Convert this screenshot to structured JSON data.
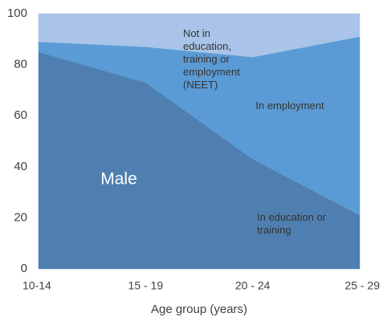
{
  "chart_data": {
    "type": "stacked_area",
    "annotation": "Male",
    "x_label": "Age group (years)",
    "categories": [
      "10-14",
      "15 - 19",
      "20 - 24",
      "25 - 29"
    ],
    "series": [
      {
        "name": "In education or training",
        "color": "#4f7fb1",
        "values": [
          85,
          73,
          43,
          21
        ]
      },
      {
        "name": "In employment",
        "color": "#5b9bd5",
        "values": [
          4,
          14,
          40,
          70
        ]
      },
      {
        "name": "Not in education, training or employment (NEET)",
        "color": "#a9c4e8",
        "values": [
          11,
          13,
          17,
          9
        ]
      }
    ],
    "ylim": [
      0,
      100
    ],
    "yticks": [
      0,
      20,
      40,
      60,
      80,
      100
    ],
    "grid": false
  }
}
